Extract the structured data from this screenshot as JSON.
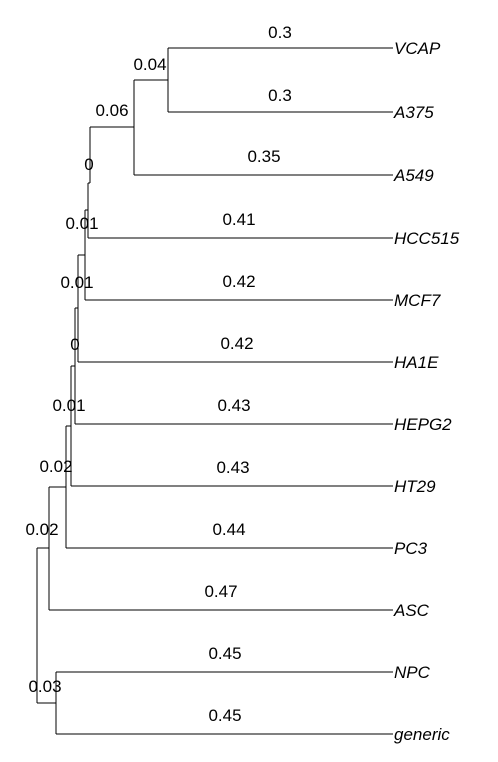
{
  "leaves": [
    {
      "name": "VCAP",
      "branch_length": "0.3"
    },
    {
      "name": "A375",
      "branch_length": "0.3"
    },
    {
      "name": "A549",
      "branch_length": "0.35"
    },
    {
      "name": "HCC515",
      "branch_length": "0.41"
    },
    {
      "name": "MCF7",
      "branch_length": "0.42"
    },
    {
      "name": "HA1E",
      "branch_length": "0.42"
    },
    {
      "name": "HEPG2",
      "branch_length": "0.43"
    },
    {
      "name": "HT29",
      "branch_length": "0.43"
    },
    {
      "name": "PC3",
      "branch_length": "0.44"
    },
    {
      "name": "ASC",
      "branch_length": "0.47"
    },
    {
      "name": "NPC",
      "branch_length": "0.45"
    },
    {
      "name": "generic",
      "branch_length": "0.45"
    }
  ],
  "internal_nodes": [
    {
      "id": "n_vcap_a375",
      "label": "0.04"
    },
    {
      "id": "n_a549",
      "label": "0.06"
    },
    {
      "id": "n_0a",
      "label": "0"
    },
    {
      "id": "n_hcc515",
      "label": "0.01"
    },
    {
      "id": "n_mcf7",
      "label": "0.01"
    },
    {
      "id": "n_0b",
      "label": "0"
    },
    {
      "id": "n_hepg2",
      "label": "0.01"
    },
    {
      "id": "n_ht29",
      "label": "0.02"
    },
    {
      "id": "n_pc3_asc",
      "label": "0.02"
    },
    {
      "id": "n_root",
      "label": "0.03"
    }
  ]
}
